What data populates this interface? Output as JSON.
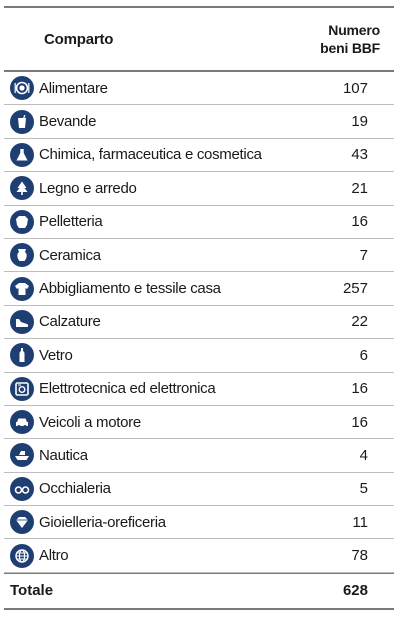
{
  "header": {
    "comparto": "Comparto",
    "numero_line1": "Numero",
    "numero_line2": "beni BBF"
  },
  "rows": [
    {
      "icon": "plate-icon",
      "label": "Alimentare",
      "value": "107"
    },
    {
      "icon": "drink-icon",
      "label": "Bevande",
      "value": "19"
    },
    {
      "icon": "flask-icon",
      "label": "Chimica, farmaceutica e cosmetica",
      "value": "43"
    },
    {
      "icon": "tree-icon",
      "label": "Legno e arredo",
      "value": "21"
    },
    {
      "icon": "hide-icon",
      "label": "Pelletteria",
      "value": "16"
    },
    {
      "icon": "vase-icon",
      "label": "Ceramica",
      "value": "7"
    },
    {
      "icon": "shirt-icon",
      "label": "Abbigliamento e tessile casa",
      "value": "257"
    },
    {
      "icon": "shoe-icon",
      "label": "Calzature",
      "value": "22"
    },
    {
      "icon": "bottle-icon",
      "label": "Vetro",
      "value": "6"
    },
    {
      "icon": "appliance-icon",
      "label": "Elettrotecnica ed elettronica",
      "value": "16"
    },
    {
      "icon": "car-icon",
      "label": "Veicoli a motore",
      "value": "16"
    },
    {
      "icon": "boat-icon",
      "label": "Nautica",
      "value": "4"
    },
    {
      "icon": "glasses-icon",
      "label": "Occhialeria",
      "value": "5"
    },
    {
      "icon": "diamond-icon",
      "label": "Gioielleria-oreficeria",
      "value": "11"
    },
    {
      "icon": "globe-icon",
      "label": "Altro",
      "value": "78"
    }
  ],
  "total": {
    "label": "Totale",
    "value": "628"
  },
  "colors": {
    "icon_bg": "#1f3f73",
    "icon_fg": "#ffffff",
    "rule": "#7a7a7a"
  }
}
